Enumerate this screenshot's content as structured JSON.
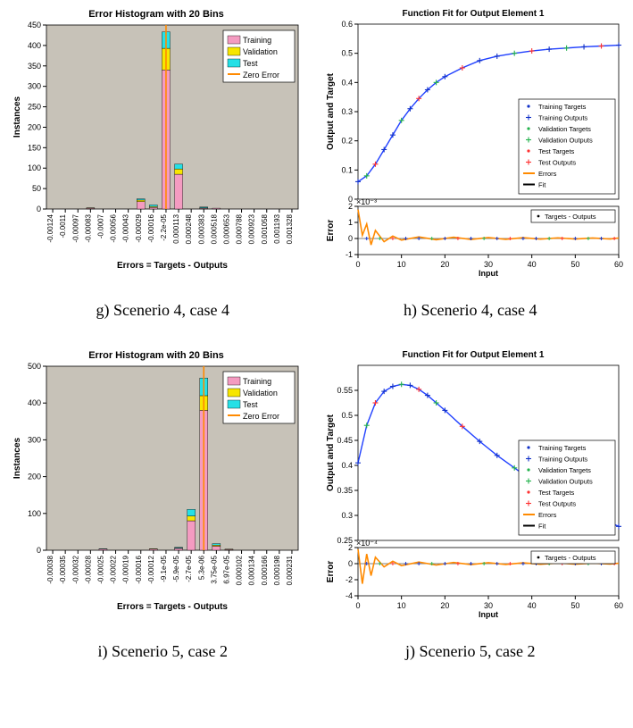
{
  "colors": {
    "plot_bg_hist": "#c7c2b8",
    "plot_bg_fit": "#ffffff",
    "axis": "#000000",
    "grid": "#8a8a8a",
    "training_fill": "#f49bc1",
    "validation_fill": "#f7e600",
    "test_fill": "#25e0e6",
    "zero_error_line": "#ff8a00",
    "fit_curve": "#2040ff",
    "marker_train_target": "#1030c8",
    "marker_train_output": "#1030c8",
    "marker_val_target": "#22b24c",
    "marker_val_output": "#22b24c",
    "marker_test_target": "#ff3030",
    "marker_test_output": "#ff3030",
    "errors_line": "#ff8a00",
    "fit_line": "#000000"
  },
  "panel_g": {
    "title": "Error Histogram with 20 Bins",
    "ylabel": "Instances",
    "xlabel": "Errors = Targets - Outputs",
    "ylim": [
      0,
      450
    ],
    "ytick_step": 50,
    "x_categories": [
      "-0.00124",
      "-0.0011",
      "-0.00097",
      "-0.00083",
      "-0.0007",
      "-0.00056",
      "-0.00043",
      "-0.00029",
      "-0.00016",
      "-2.2e-05",
      "0.000113",
      "0.000248",
      "0.000383",
      "0.000518",
      "0.000653",
      "0.000788",
      "0.000923",
      "0.001058",
      "0.001193",
      "0.001328"
    ],
    "zero_error_bin_index": 9,
    "bars": [
      {
        "i": 3,
        "train": 2,
        "val": 1,
        "test": 0
      },
      {
        "i": 7,
        "train": 18,
        "val": 4,
        "test": 3
      },
      {
        "i": 8,
        "train": 4,
        "val": 2,
        "test": 4
      },
      {
        "i": 9,
        "train": 340,
        "val": 53,
        "test": 40
      },
      {
        "i": 10,
        "train": 85,
        "val": 13,
        "test": 12
      },
      {
        "i": 12,
        "train": 2,
        "val": 1,
        "test": 2
      },
      {
        "i": 13,
        "train": 2,
        "val": 0,
        "test": 0
      }
    ],
    "legend": [
      "Training",
      "Validation",
      "Test",
      "Zero Error"
    ]
  },
  "panel_h": {
    "title": "Function Fit for Output Element 1",
    "ylabel_main": "Output and Target",
    "ylabel_err": "Error",
    "xlabel": "Input",
    "xlim": [
      0,
      60
    ],
    "ylim_main": [
      0,
      0.6
    ],
    "ytick_step_main": 0.1,
    "ylim_err_scale": "×10⁻³",
    "ylim_err": [
      -1,
      2
    ],
    "err_ticks": [
      -1,
      0,
      1,
      2
    ],
    "legend_main": [
      "Training Targets",
      "Training Outputs",
      "Validation Targets",
      "Validation Outputs",
      "Test Targets",
      "Test Outputs",
      "Errors",
      "Fit"
    ],
    "legend_err": [
      "Targets - Outputs"
    ],
    "curve_points": [
      [
        0,
        0.06
      ],
      [
        2,
        0.08
      ],
      [
        4,
        0.12
      ],
      [
        6,
        0.17
      ],
      [
        8,
        0.22
      ],
      [
        10,
        0.27
      ],
      [
        12,
        0.31
      ],
      [
        14,
        0.345
      ],
      [
        16,
        0.375
      ],
      [
        18,
        0.4
      ],
      [
        20,
        0.42
      ],
      [
        24,
        0.45
      ],
      [
        28,
        0.475
      ],
      [
        32,
        0.49
      ],
      [
        36,
        0.5
      ],
      [
        40,
        0.508
      ],
      [
        44,
        0.514
      ],
      [
        48,
        0.518
      ],
      [
        52,
        0.522
      ],
      [
        56,
        0.525
      ],
      [
        60,
        0.528
      ]
    ],
    "marker_colors_seq": [
      "#1030c8",
      "#22b24c",
      "#ff3030",
      "#1030c8",
      "#1030c8",
      "#22b24c",
      "#1030c8",
      "#ff3030",
      "#1030c8",
      "#22b24c",
      "#1030c8",
      "#ff3030",
      "#1030c8",
      "#1030c8",
      "#22b24c",
      "#ff3030",
      "#1030c8",
      "#22b24c",
      "#1030c8",
      "#ff3030",
      "#1030c8"
    ],
    "err_wave": [
      [
        0,
        1.8
      ],
      [
        1,
        0.2
      ],
      [
        2,
        0.9
      ],
      [
        3,
        -0.4
      ],
      [
        4,
        0.5
      ],
      [
        6,
        -0.2
      ],
      [
        8,
        0.15
      ],
      [
        10,
        -0.1
      ],
      [
        14,
        0.1
      ],
      [
        18,
        -0.08
      ],
      [
        22,
        0.08
      ],
      [
        26,
        -0.06
      ],
      [
        30,
        0.06
      ],
      [
        34,
        -0.05
      ],
      [
        38,
        0.05
      ],
      [
        42,
        -0.04
      ],
      [
        46,
        0.04
      ],
      [
        50,
        -0.03
      ],
      [
        54,
        0.03
      ],
      [
        58,
        -0.03
      ],
      [
        60,
        0.03
      ]
    ]
  },
  "panel_i": {
    "title": "Error Histogram with 20 Bins",
    "ylabel": "Instances",
    "xlabel": "Errors = Targets - Outputs",
    "ylim": [
      0,
      500
    ],
    "ytick_step": 100,
    "x_categories": [
      "-0.00038",
      "-0.00035",
      "-0.00032",
      "-0.00028",
      "-0.00025",
      "-0.00022",
      "-0.00019",
      "-0.00016",
      "-0.00012",
      "-9.1e-05",
      "-5.9e-05",
      "-2.7e-05",
      "5.3e-06",
      "3.75e-05",
      "6.97e-05",
      "0.000102",
      "0.000134",
      "0.000166",
      "0.000198",
      "0.000231"
    ],
    "zero_error_bin_index": 12,
    "bars": [
      {
        "i": 4,
        "train": 3,
        "val": 0,
        "test": 1
      },
      {
        "i": 8,
        "train": 3,
        "val": 1,
        "test": 0
      },
      {
        "i": 10,
        "train": 5,
        "val": 1,
        "test": 2
      },
      {
        "i": 11,
        "train": 80,
        "val": 13,
        "test": 18
      },
      {
        "i": 12,
        "train": 380,
        "val": 40,
        "test": 48
      },
      {
        "i": 13,
        "train": 11,
        "val": 3,
        "test": 4
      },
      {
        "i": 14,
        "train": 2,
        "val": 1,
        "test": 0
      }
    ],
    "legend": [
      "Training",
      "Validation",
      "Test",
      "Zero Error"
    ]
  },
  "panel_j": {
    "title": "Function Fit for Output Element 1",
    "ylabel_main": "Output and Target",
    "ylabel_err": "Error",
    "xlabel": "Input",
    "xlim": [
      0,
      60
    ],
    "ylim_main": [
      0.25,
      0.6
    ],
    "main_ticks": [
      0.25,
      0.3,
      0.35,
      0.4,
      0.45,
      0.5,
      0.55
    ],
    "ylim_err_scale": "×10⁻⁴",
    "ylim_err": [
      -4,
      2
    ],
    "err_ticks": [
      -4,
      -2,
      0,
      2
    ],
    "legend_main": [
      "Training Targets",
      "Training Outputs",
      "Validation Targets",
      "Validation Outputs",
      "Test Targets",
      "Test Outputs",
      "Errors",
      "Fit"
    ],
    "legend_err": [
      "Targets - Outputs"
    ],
    "curve_points": [
      [
        0,
        0.405
      ],
      [
        2,
        0.48
      ],
      [
        4,
        0.525
      ],
      [
        6,
        0.548
      ],
      [
        8,
        0.558
      ],
      [
        10,
        0.562
      ],
      [
        12,
        0.56
      ],
      [
        14,
        0.552
      ],
      [
        16,
        0.54
      ],
      [
        18,
        0.525
      ],
      [
        20,
        0.51
      ],
      [
        24,
        0.478
      ],
      [
        28,
        0.448
      ],
      [
        32,
        0.42
      ],
      [
        36,
        0.395
      ],
      [
        40,
        0.37
      ],
      [
        44,
        0.348
      ],
      [
        48,
        0.328
      ],
      [
        52,
        0.31
      ],
      [
        56,
        0.293
      ],
      [
        60,
        0.278
      ]
    ],
    "marker_colors_seq": [
      "#1030c8",
      "#22b24c",
      "#ff3030",
      "#1030c8",
      "#1030c8",
      "#22b24c",
      "#1030c8",
      "#ff3030",
      "#1030c8",
      "#22b24c",
      "#1030c8",
      "#ff3030",
      "#1030c8",
      "#1030c8",
      "#22b24c",
      "#ff3030",
      "#1030c8",
      "#22b24c",
      "#1030c8",
      "#ff3030",
      "#1030c8"
    ],
    "err_wave": [
      [
        0,
        1.8
      ],
      [
        1,
        -2.5
      ],
      [
        2,
        1.2
      ],
      [
        3,
        -1.5
      ],
      [
        4,
        0.8
      ],
      [
        6,
        -0.4
      ],
      [
        8,
        0.3
      ],
      [
        10,
        -0.25
      ],
      [
        14,
        0.2
      ],
      [
        18,
        -0.18
      ],
      [
        22,
        0.15
      ],
      [
        26,
        -0.12
      ],
      [
        30,
        0.12
      ],
      [
        34,
        -0.1
      ],
      [
        38,
        0.1
      ],
      [
        42,
        -0.08
      ],
      [
        46,
        0.08
      ],
      [
        50,
        -0.06
      ],
      [
        54,
        0.06
      ],
      [
        58,
        -0.05
      ],
      [
        60,
        0.05
      ]
    ]
  },
  "captions": {
    "g": "g)   Scenerio 4, case 4",
    "h": "h)   Scenerio 4, case 4",
    "i": "i)   Scenerio 5, case 2",
    "j": "j)   Scenerio 5, case 2"
  }
}
